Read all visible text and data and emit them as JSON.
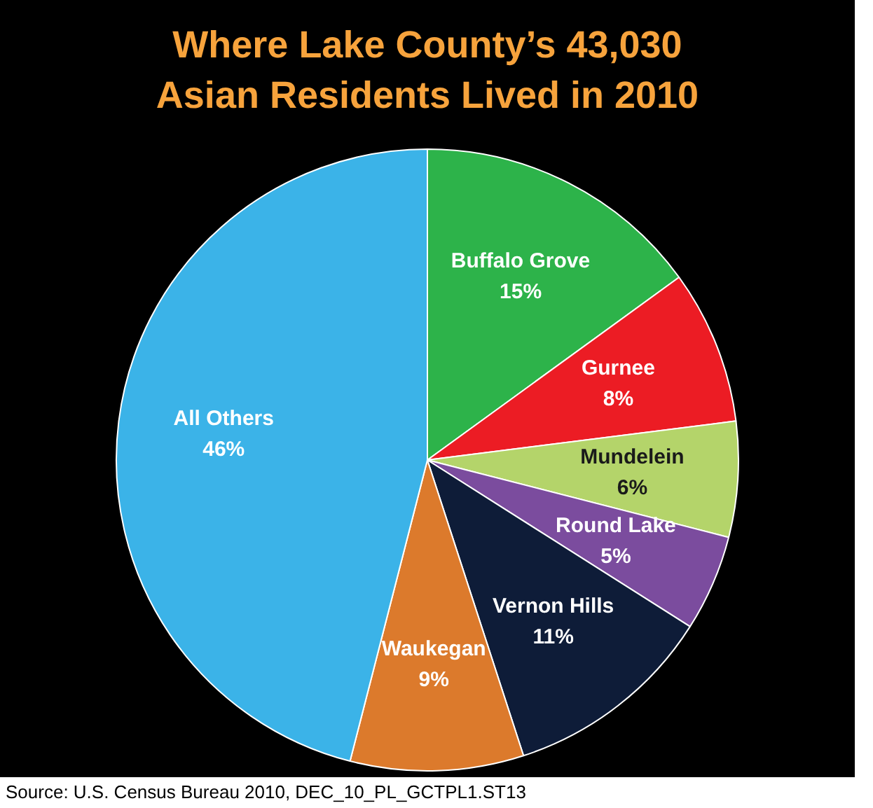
{
  "chart_data": {
    "type": "pie",
    "title": "Where Lake County’s 43,030 Asian Residents Lived in 2010",
    "categories": [
      "Buffalo Grove",
      "Gurnee",
      "Mundelein",
      "Round Lake",
      "Vernon Hills",
      "Waukegan",
      "All Others"
    ],
    "values": [
      15,
      8,
      6,
      5,
      11,
      9,
      46
    ],
    "value_labels": [
      "15%",
      "8%",
      "6%",
      "5%",
      "11%",
      "9%",
      "46%"
    ],
    "colors": [
      "#2db34a",
      "#ec1c24",
      "#b4d46a",
      "#7b4c9e",
      "#0e1c38",
      "#dc7a2c",
      "#3bb3e8"
    ],
    "legend": false,
    "annotations": [
      "Source: U.S. Census Bureau 2010, DEC_10_PL_GCTPL1.ST13"
    ]
  }
}
